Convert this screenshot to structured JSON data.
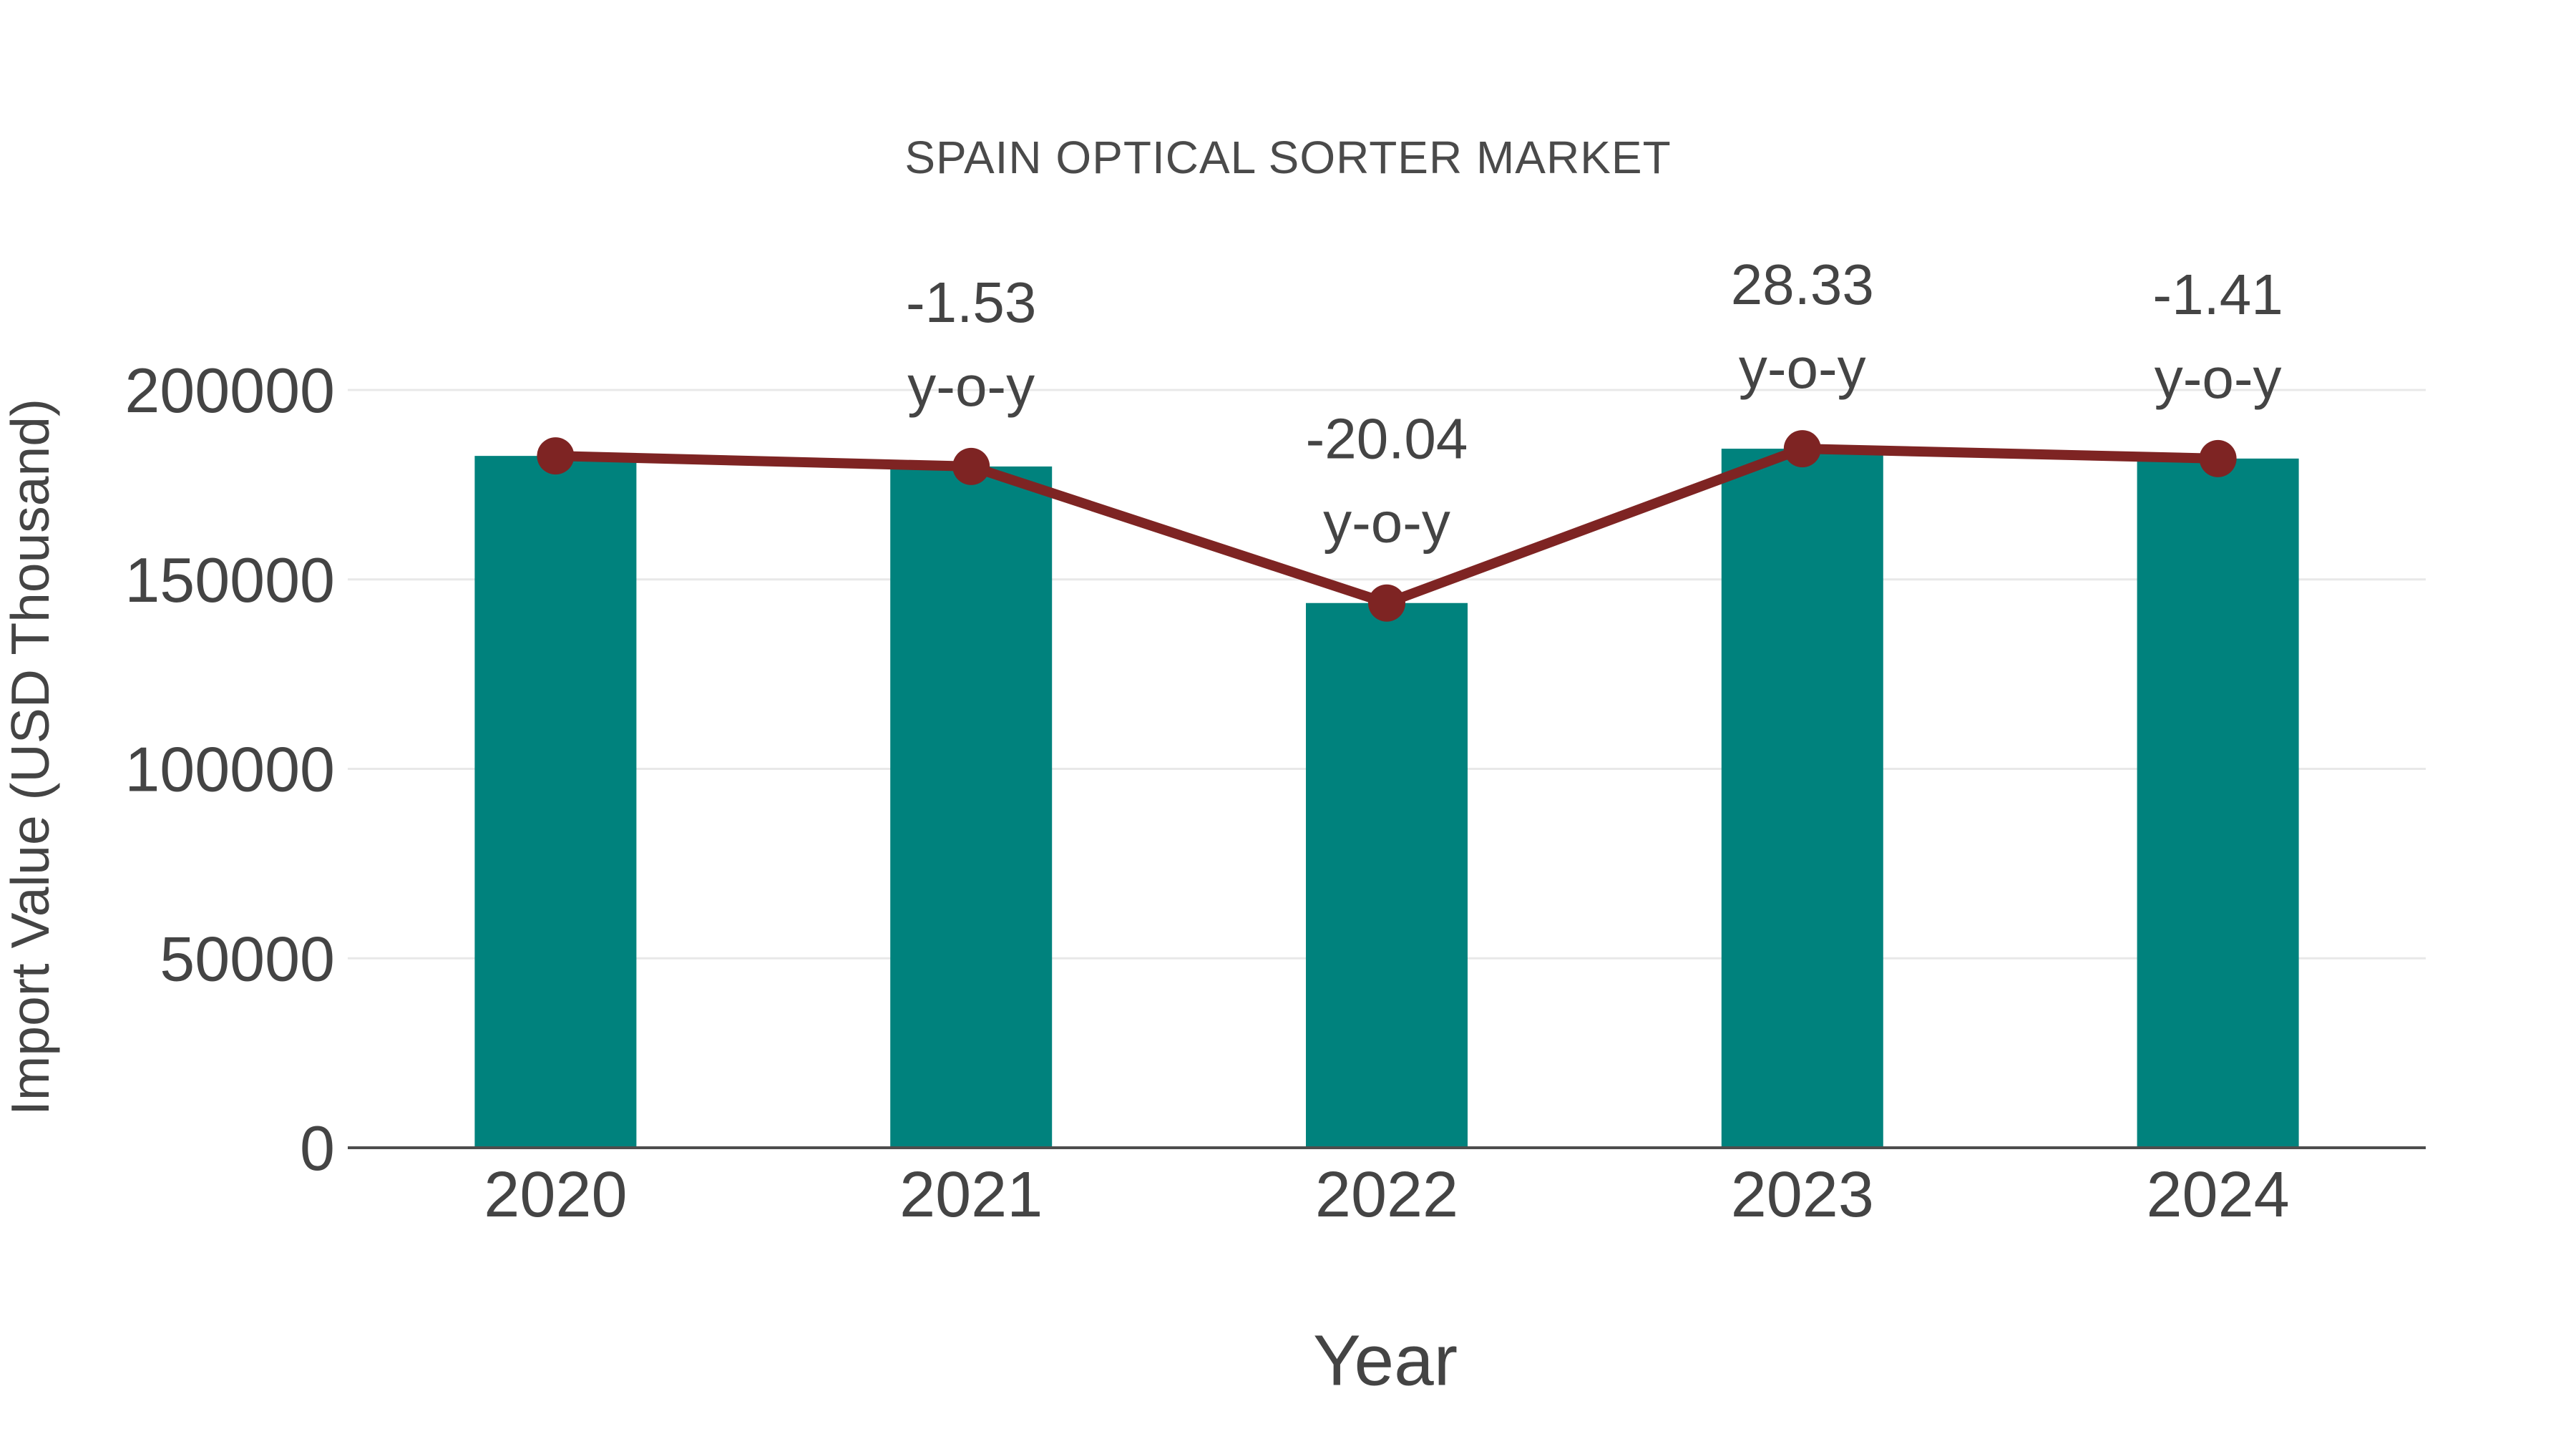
{
  "chart": {
    "title": "SPAIN OPTICAL SORTER MARKET",
    "x_axis_title": "Year",
    "y_axis_title": "Import Value (USD Thousand)"
  },
  "chart_data": {
    "type": "bar",
    "title": "SPAIN OPTICAL SORTER MARKET",
    "xlabel": "Year",
    "ylabel": "Import Value (USD Thousand)",
    "categories": [
      "2020",
      "2021",
      "2022",
      "2023",
      "2024"
    ],
    "series": [
      {
        "name": "Import Value (USD Thousand)",
        "type": "bar",
        "values": [
          182600,
          179810,
          143770,
          184500,
          181900
        ]
      },
      {
        "name": "y-o-y trend line",
        "type": "line",
        "values": [
          182600,
          179810,
          143770,
          184500,
          181900
        ]
      }
    ],
    "yoy_percent": [
      null,
      -1.53,
      -20.04,
      28.33,
      -1.41
    ],
    "annotations": [
      {
        "category": "2021",
        "line1": "-1.53",
        "line2": "y-o-y"
      },
      {
        "category": "2022",
        "line1": "-20.04",
        "line2": "y-o-y"
      },
      {
        "category": "2023",
        "line1": "28.33",
        "line2": "y-o-y"
      },
      {
        "category": "2024",
        "line1": "-1.41",
        "line2": "y-o-y"
      }
    ],
    "ylim": [
      0,
      200000
    ],
    "yticks": [
      0,
      50000,
      100000,
      150000,
      200000
    ],
    "grid": true,
    "legend_position": "none",
    "colors": {
      "bar": "#00827D",
      "line": "#7E2423",
      "marker": "#7E2423",
      "text": "#444444",
      "grid": "#E8E8E8",
      "axis_line": "#4D4D4D",
      "background": "#FFFFFF"
    }
  }
}
